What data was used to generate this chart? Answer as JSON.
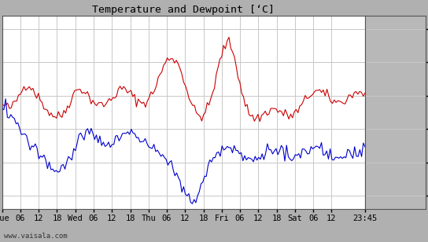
{
  "title": "Temperature and Dewpoint [‘C]",
  "ylim": [
    -7,
    22
  ],
  "yticks": [
    -5,
    0,
    5,
    10,
    15,
    20
  ],
  "background_color": "#ffffff",
  "grid_color": "#c8c8c8",
  "line_color_temp": "#cc0000",
  "line_color_dew": "#0000cc",
  "linewidth": 0.8,
  "watermark": "www.vaisala.com",
  "right_panel_color": "#b8b8b8",
  "outer_bg_color": "#b0b0b0",
  "x_tick_labels": [
    "Tue",
    "06",
    "12",
    "18",
    "Wed",
    "06",
    "12",
    "18",
    "Thu",
    "06",
    "12",
    "18",
    "Fri",
    "06",
    "12",
    "18",
    "Sat",
    "06",
    "12",
    "23:45"
  ],
  "x_tick_positions": [
    0,
    6,
    12,
    18,
    24,
    30,
    36,
    42,
    48,
    54,
    60,
    66,
    72,
    78,
    84,
    90,
    96,
    102,
    108,
    119
  ],
  "x_total_hours": 119,
  "temp_data": [
    8.5,
    8.6,
    8.4,
    8.3,
    8.2,
    8.3,
    8.5,
    8.9,
    9.4,
    9.9,
    10.4,
    10.9,
    11.3,
    11.6,
    11.8,
    11.6,
    11.3,
    11.0,
    10.6,
    10.2,
    9.8,
    9.4,
    9.0,
    8.6,
    8.2,
    7.8,
    7.5,
    7.3,
    7.1,
    7.0,
    6.9,
    6.9,
    7.0,
    7.2,
    7.5,
    7.9,
    8.4,
    9.0,
    9.6,
    10.1,
    10.5,
    10.8,
    11.0,
    11.1,
    11.0,
    10.8,
    10.5,
    10.2,
    9.8,
    9.5,
    9.2,
    9.0,
    8.8,
    8.7,
    8.6,
    8.6,
    8.7,
    8.8,
    9.0,
    9.2,
    9.5,
    9.8,
    10.1,
    10.4,
    10.7,
    10.9,
    11.0,
    11.0,
    10.9,
    10.7,
    10.5,
    10.2,
    9.9,
    9.6,
    9.4,
    9.2,
    9.1,
    9.0,
    9.0,
    9.1,
    9.3,
    9.6,
    10.0,
    10.5,
    11.1,
    11.7,
    12.4,
    13.1,
    13.8,
    14.4,
    14.9,
    15.3,
    15.6,
    15.7,
    15.7,
    15.5,
    15.2,
    14.7,
    14.1,
    13.4,
    12.6,
    11.7,
    10.8,
    9.9,
    9.1,
    8.4,
    7.8,
    7.4,
    7.1,
    7.0,
    7.0,
    7.2,
    7.5,
    8.0,
    8.7,
    9.5,
    10.5,
    11.6,
    12.8,
    14.0,
    15.2,
    16.2,
    17.0,
    17.6,
    18.0,
    17.9,
    17.5,
    16.8,
    15.8,
    14.6,
    13.3,
    12.0,
    10.8,
    9.7,
    8.8,
    8.1,
    7.5,
    7.1,
    6.8,
    6.7,
    6.6,
    6.7,
    6.8,
    7.0,
    7.2,
    7.4,
    7.6,
    7.8,
    7.9,
    8.0,
    8.0,
    7.9,
    7.8,
    7.7,
    7.5,
    7.3,
    7.2,
    7.1,
    7.0,
    7.0,
    7.1,
    7.3,
    7.5,
    7.8,
    8.1,
    8.5,
    8.9,
    9.3,
    9.7,
    10.0,
    10.3,
    10.5,
    10.6,
    10.7,
    10.7,
    10.6,
    10.5,
    10.3,
    10.1,
    9.9,
    9.7,
    9.5,
    9.3,
    9.2,
    9.1,
    9.0,
    9.0,
    9.1,
    9.2,
    9.4,
    9.6,
    9.8,
    10.0,
    10.2,
    10.4,
    10.5,
    10.6,
    10.6,
    10.5,
    10.4,
    10.3
  ],
  "dew_data": [
    7.5,
    7.4,
    7.3,
    7.1,
    6.9,
    6.7,
    6.4,
    6.1,
    5.8,
    5.4,
    5.0,
    4.6,
    4.2,
    3.8,
    3.4,
    3.0,
    2.7,
    2.4,
    2.1,
    1.8,
    1.5,
    1.2,
    0.9,
    0.7,
    0.4,
    0.2,
    0.0,
    -0.2,
    -0.5,
    -0.7,
    -1.0,
    -1.1,
    -1.2,
    -1.2,
    -1.0,
    -0.8,
    -0.5,
    -0.1,
    0.3,
    0.8,
    1.3,
    1.9,
    2.4,
    2.9,
    3.3,
    3.7,
    4.0,
    4.2,
    4.4,
    4.5,
    4.5,
    4.4,
    4.3,
    4.1,
    3.9,
    3.7,
    3.5,
    3.3,
    3.1,
    2.9,
    2.8,
    2.7,
    2.7,
    2.7,
    2.8,
    3.0,
    3.2,
    3.5,
    3.8,
    4.1,
    4.3,
    4.5,
    4.6,
    4.6,
    4.5,
    4.4,
    4.2,
    4.0,
    3.8,
    3.6,
    3.4,
    3.2,
    3.0,
    2.8,
    2.6,
    2.4,
    2.2,
    2.0,
    1.8,
    1.6,
    1.4,
    1.2,
    1.0,
    0.8,
    0.5,
    0.2,
    -0.1,
    -0.5,
    -0.9,
    -1.3,
    -1.8,
    -2.3,
    -2.8,
    -3.4,
    -4.0,
    -4.5,
    -4.9,
    -5.2,
    -5.4,
    -5.5,
    -5.4,
    -5.2,
    -4.8,
    -4.3,
    -3.7,
    -3.1,
    -2.4,
    -1.7,
    -1.0,
    -0.4,
    0.1,
    0.6,
    1.0,
    1.4,
    1.7,
    2.0,
    2.2,
    2.4,
    2.5,
    2.5,
    2.4,
    2.3,
    2.1,
    1.9,
    1.7,
    1.5,
    1.3,
    1.1,
    0.9,
    0.7,
    0.6,
    0.5,
    0.4,
    0.4,
    0.4,
    0.5,
    0.6,
    0.7,
    0.9,
    1.0,
    1.2,
    1.3,
    1.5,
    1.6,
    1.7,
    1.8,
    1.8,
    1.8,
    1.7,
    1.6,
    1.5,
    1.4,
    1.3,
    1.2,
    1.1,
    1.1,
    1.0,
    1.0,
    1.0,
    1.0,
    1.1,
    1.2,
    1.3,
    1.5,
    1.7,
    1.8,
    2.0,
    2.1,
    2.2,
    2.3,
    2.3,
    2.3,
    2.2,
    2.1,
    1.9,
    1.8,
    1.6,
    1.5,
    1.4,
    1.2,
    1.1,
    1.0,
    0.9,
    0.9,
    0.8,
    0.8,
    0.8,
    0.9,
    1.0,
    1.1,
    1.2,
    1.3,
    1.5,
    1.6,
    1.7,
    1.8,
    1.8,
    1.8,
    1.7
  ],
  "noise_seed_temp": 42,
  "noise_seed_dew": 137,
  "noise_amp_temp": 0.4,
  "noise_amp_dew": 0.5
}
